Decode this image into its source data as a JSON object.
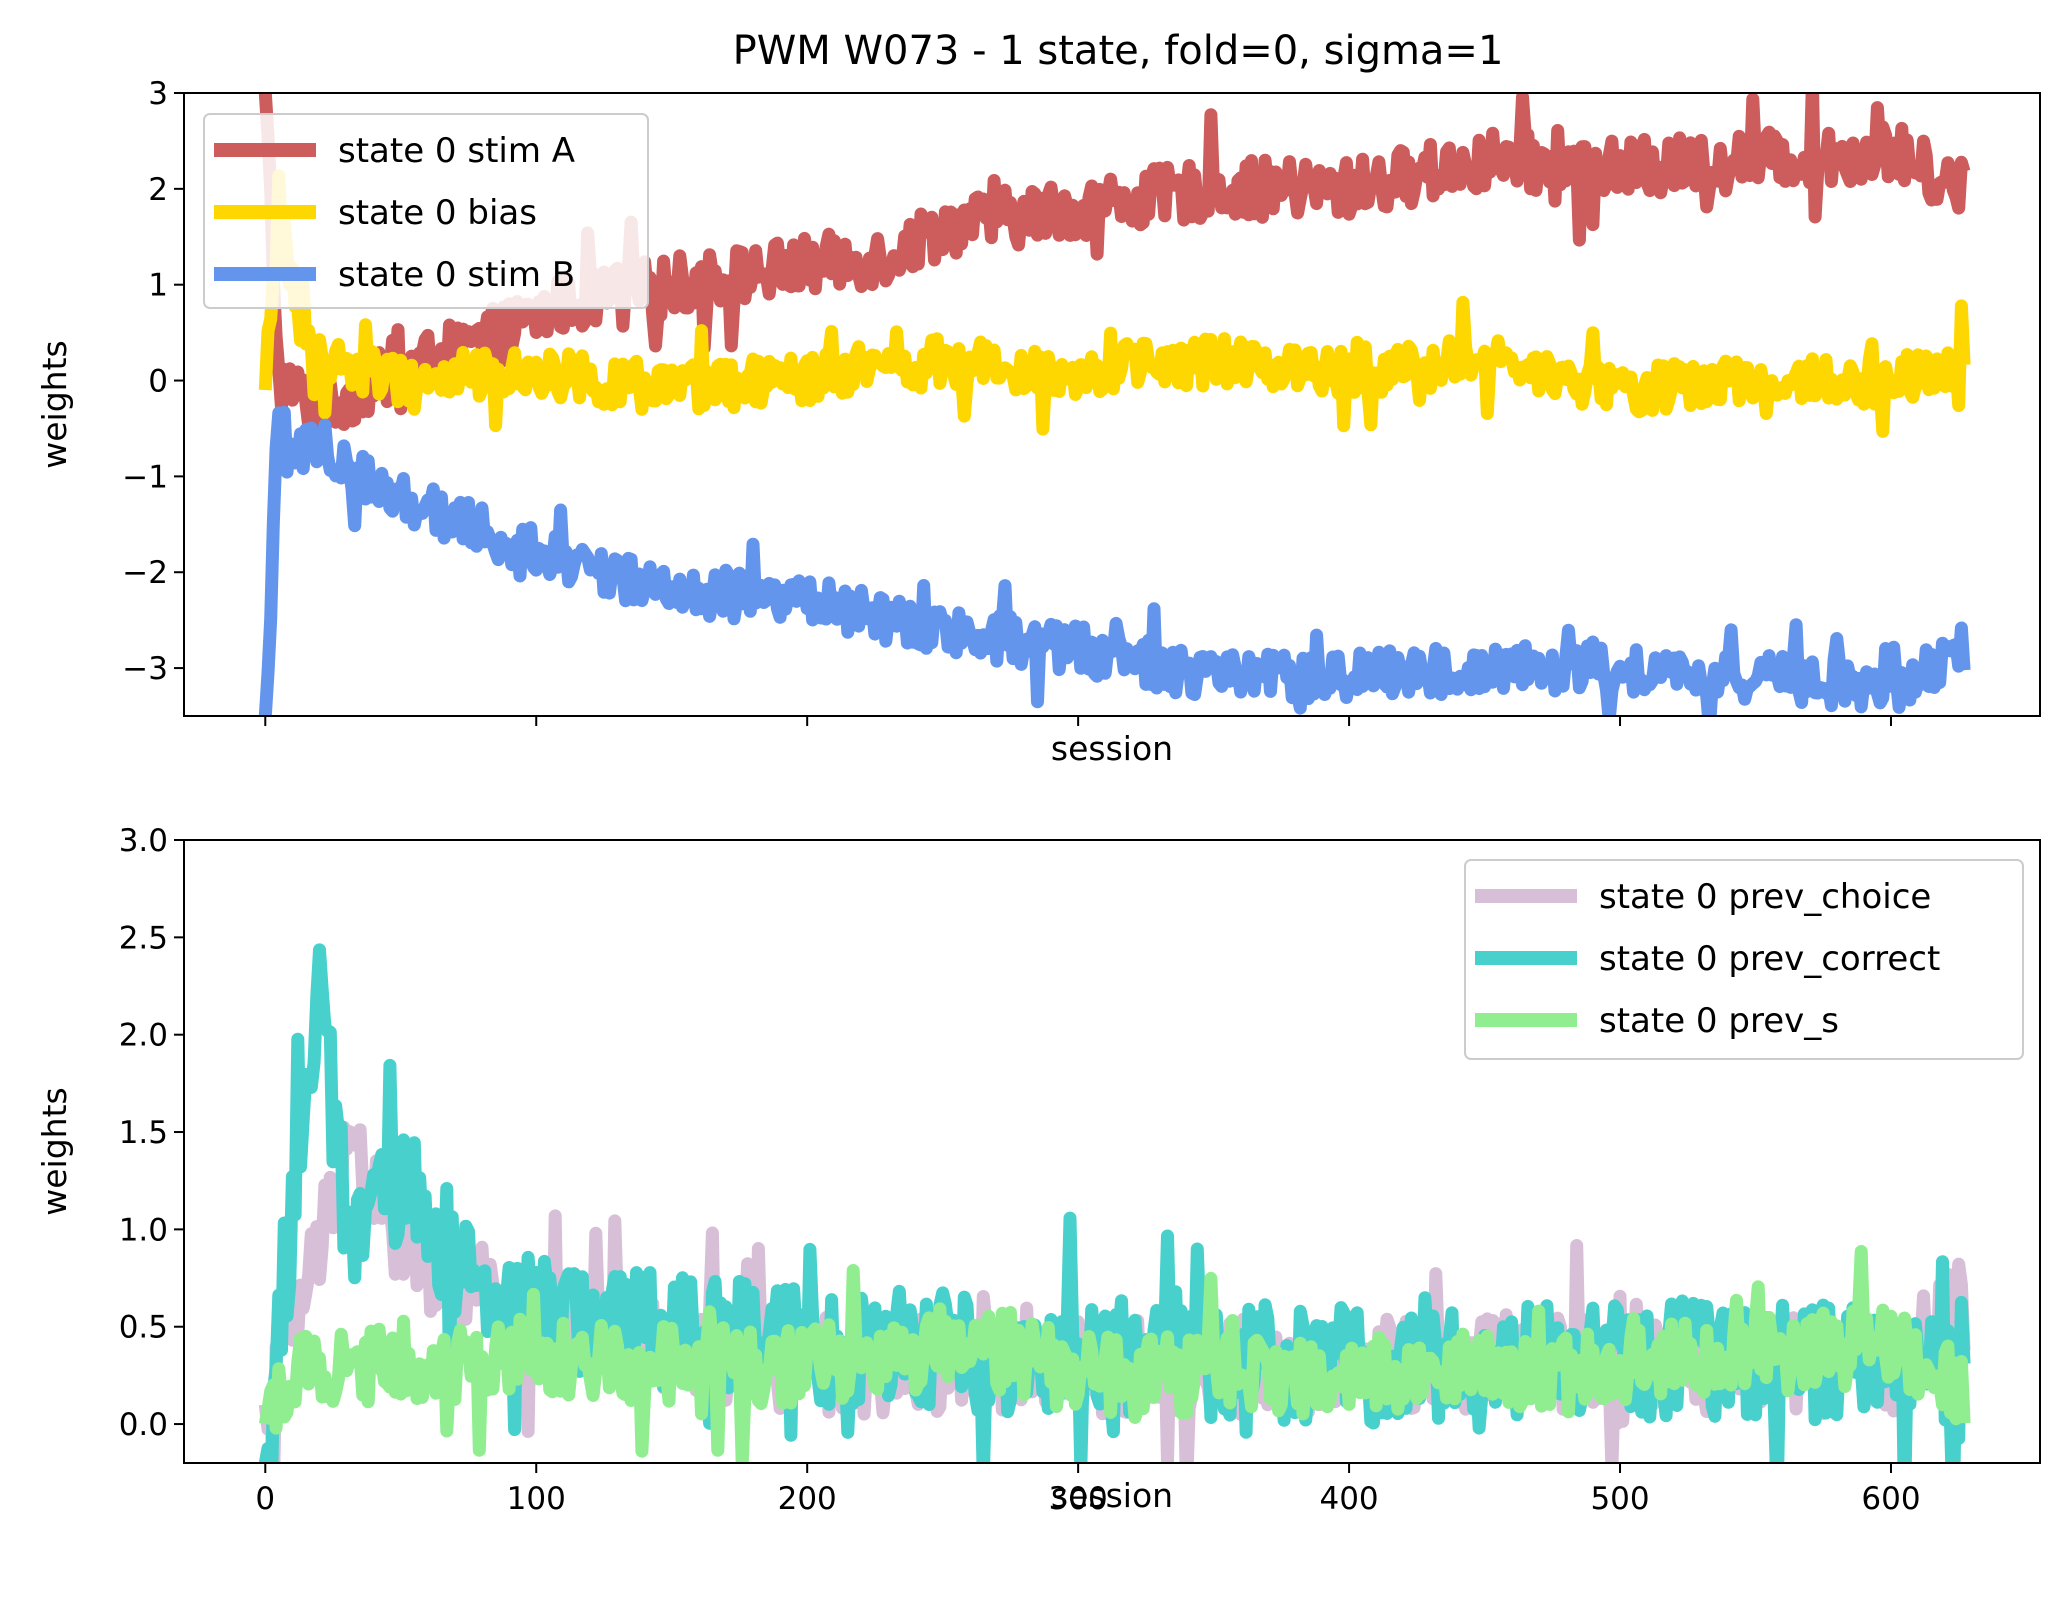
{
  "title": "PWM W073 - 1 state, fold=0, sigma=1",
  "chart_data": [
    {
      "type": "line",
      "xlabel": "session",
      "ylabel": "weights",
      "xlim": [
        -30,
        655
      ],
      "ylim": [
        -3.5,
        3
      ],
      "x_ticks": [
        0,
        100,
        200,
        300,
        400,
        500,
        600
      ],
      "show_x_tick_labels": false,
      "y_ticks": [
        -3,
        -2,
        -1,
        0,
        1,
        2,
        3
      ],
      "y_tick_labels": [
        "−3",
        "−2",
        "−1",
        "0",
        "1",
        "2",
        "3"
      ],
      "grid": false,
      "legend_position": "upper-left",
      "n_sessions": 628,
      "series": [
        {
          "name": "state 0 stim A",
          "color": "#cd5c5c",
          "approx_trend": [
            [
              0,
              3.0
            ],
            [
              5,
              0.0
            ],
            [
              20,
              -0.3
            ],
            [
              50,
              0.1
            ],
            [
              80,
              0.4
            ],
            [
              110,
              0.8
            ],
            [
              150,
              1.0
            ],
            [
              200,
              1.2
            ],
            [
              230,
              1.3
            ],
            [
              250,
              1.6
            ],
            [
              300,
              1.8
            ],
            [
              350,
              2.0
            ],
            [
              400,
              2.0
            ],
            [
              450,
              2.3
            ],
            [
              500,
              2.2
            ],
            [
              550,
              2.3
            ],
            [
              600,
              2.4
            ],
            [
              627,
              2.0
            ]
          ],
          "noise": 0.3
        },
        {
          "name": "state 0 bias",
          "color": "#ffd700",
          "approx_trend": [
            [
              0,
              -0.1
            ],
            [
              5,
              1.8
            ],
            [
              15,
              0.3
            ],
            [
              50,
              0.0
            ],
            [
              100,
              0.1
            ],
            [
              150,
              -0.1
            ],
            [
              200,
              0.0
            ],
            [
              250,
              0.2
            ],
            [
              300,
              0.1
            ],
            [
              350,
              0.2
            ],
            [
              400,
              0.1
            ],
            [
              450,
              0.2
            ],
            [
              500,
              -0.1
            ],
            [
              550,
              0.0
            ],
            [
              600,
              0.0
            ],
            [
              627,
              0.2
            ]
          ],
          "noise": 0.25
        },
        {
          "name": "state 0 stim B",
          "color": "#6495ed",
          "approx_trend": [
            [
              0,
              -3.5
            ],
            [
              5,
              -0.5
            ],
            [
              20,
              -0.8
            ],
            [
              50,
              -1.2
            ],
            [
              100,
              -1.8
            ],
            [
              150,
              -2.2
            ],
            [
              200,
              -2.3
            ],
            [
              250,
              -2.6
            ],
            [
              300,
              -2.8
            ],
            [
              350,
              -3.1
            ],
            [
              400,
              -3.1
            ],
            [
              450,
              -3.0
            ],
            [
              500,
              -3.0
            ],
            [
              550,
              -3.1
            ],
            [
              600,
              -3.2
            ],
            [
              627,
              -2.8
            ]
          ],
          "noise": 0.25
        }
      ]
    },
    {
      "type": "line",
      "xlabel": "session",
      "ylabel": "weights",
      "xlim": [
        -30,
        655
      ],
      "ylim": [
        -0.2,
        3.0
      ],
      "x_ticks": [
        0,
        100,
        200,
        300,
        400,
        500,
        600
      ],
      "x_tick_labels": [
        "0",
        "100",
        "200",
        "300",
        "400",
        "500",
        "600"
      ],
      "y_ticks": [
        0.0,
        0.5,
        1.0,
        1.5,
        2.0,
        2.5,
        3.0
      ],
      "y_tick_labels": [
        "0.0",
        "0.5",
        "1.0",
        "1.5",
        "2.0",
        "2.5",
        "3.0"
      ],
      "grid": false,
      "legend_position": "upper-right",
      "n_sessions": 628,
      "series": [
        {
          "name": "state 0 prev_choice",
          "color": "#d8bfd8",
          "approx_trend": [
            [
              0,
              0.1
            ],
            [
              5,
              0.3
            ],
            [
              20,
              0.9
            ],
            [
              30,
              1.5
            ],
            [
              50,
              0.9
            ],
            [
              100,
              0.5
            ],
            [
              150,
              0.4
            ],
            [
              200,
              0.3
            ],
            [
              300,
              0.3
            ],
            [
              400,
              0.3
            ],
            [
              500,
              0.3
            ],
            [
              600,
              0.3
            ],
            [
              627,
              0.6
            ]
          ],
          "noise": 0.25
        },
        {
          "name": "state 0 prev_correct",
          "color": "#48d1cc",
          "approx_trend": [
            [
              0,
              -0.2
            ],
            [
              5,
              0.5
            ],
            [
              15,
              1.7
            ],
            [
              20,
              2.2
            ],
            [
              30,
              1.0
            ],
            [
              55,
              1.2
            ],
            [
              80,
              0.6
            ],
            [
              130,
              0.5
            ],
            [
              200,
              0.4
            ],
            [
              300,
              0.35
            ],
            [
              400,
              0.3
            ],
            [
              500,
              0.35
            ],
            [
              600,
              0.3
            ],
            [
              627,
              0.2
            ]
          ],
          "noise": 0.3
        },
        {
          "name": "state 0 prev_s",
          "color": "#90ee90",
          "approx_trend": [
            [
              0,
              0.0
            ],
            [
              10,
              0.3
            ],
            [
              50,
              0.3
            ],
            [
              100,
              0.35
            ],
            [
              150,
              0.3
            ],
            [
              200,
              0.3
            ],
            [
              265,
              0.4
            ],
            [
              300,
              0.25
            ],
            [
              400,
              0.25
            ],
            [
              500,
              0.3
            ],
            [
              600,
              0.4
            ],
            [
              627,
              0.2
            ]
          ],
          "noise": 0.2
        }
      ]
    }
  ]
}
